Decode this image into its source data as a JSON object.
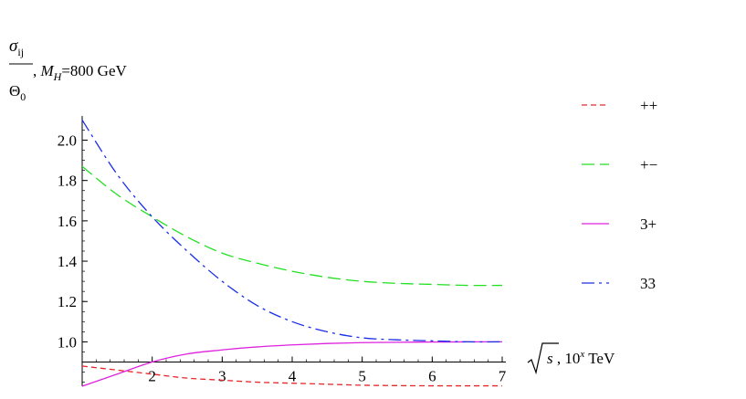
{
  "chart_data": {
    "type": "line",
    "ylabel": {
      "numerator": "σ",
      "numerator_sub": "ij",
      "denominator": "Θ",
      "denominator_sub": "0",
      "suffix": ", ",
      "mass_symbol": "M",
      "mass_sub": "H",
      "mass_value": "=800 GeV"
    },
    "xlabel": {
      "sqrt_arg": "s",
      "prefix": " , 10",
      "exp": "x",
      "unit": " TeV"
    },
    "xlim": [
      1,
      7
    ],
    "ylim": [
      0.78,
      2.12
    ],
    "x_axis_crossing_y": 0.9,
    "x_ticks": [
      "2",
      "3",
      "4",
      "5",
      "6",
      "7"
    ],
    "y_ticks": [
      "1.0",
      "1.2",
      "1.4",
      "1.6",
      "1.8",
      "2.0"
    ],
    "series": [
      {
        "name": "++",
        "color": "#e8262a",
        "dash": "6,4",
        "x": [
          1,
          1.5,
          2,
          2.5,
          3,
          3.5,
          4,
          4.5,
          5,
          5.5,
          6,
          6.5,
          7
        ],
        "y": [
          0.88,
          0.86,
          0.84,
          0.82,
          0.81,
          0.8,
          0.795,
          0.79,
          0.785,
          0.783,
          0.782,
          0.782,
          0.782
        ]
      },
      {
        "name": "+−",
        "color": "#22e022",
        "dash": "14,6",
        "x": [
          1,
          1.5,
          2,
          2.5,
          3,
          3.5,
          4,
          4.5,
          5,
          5.5,
          6,
          6.5,
          7
        ],
        "y": [
          1.87,
          1.73,
          1.62,
          1.52,
          1.44,
          1.39,
          1.35,
          1.32,
          1.3,
          1.29,
          1.285,
          1.28,
          1.28
        ]
      },
      {
        "name": "3+",
        "color": "#dd22dd",
        "dash": "",
        "x": [
          1,
          1.5,
          2,
          2.5,
          3,
          3.5,
          4,
          4.5,
          5,
          5.5,
          6,
          6.5,
          7
        ],
        "y": [
          0.78,
          0.84,
          0.9,
          0.94,
          0.96,
          0.975,
          0.985,
          0.992,
          0.996,
          0.998,
          0.999,
          1.0,
          1.0
        ]
      },
      {
        "name": "33",
        "color": "#1a2ee8",
        "dash": "14,5,3,5",
        "x": [
          1,
          1.5,
          2,
          2.5,
          3,
          3.5,
          4,
          4.5,
          5,
          5.5,
          6,
          6.5,
          7
        ],
        "y": [
          2.1,
          1.83,
          1.62,
          1.45,
          1.3,
          1.18,
          1.1,
          1.05,
          1.02,
          1.01,
          1.005,
          1.0,
          1.0
        ]
      }
    ],
    "legend_placement": "right"
  }
}
